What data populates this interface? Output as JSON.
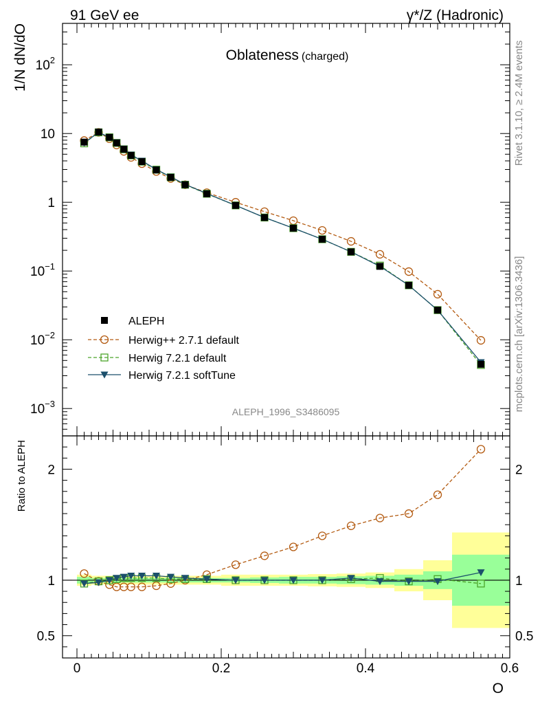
{
  "header": {
    "left": "91 GeV ee",
    "right": "γ*/Z (Hadronic)"
  },
  "side": {
    "rivet": "Rivet 3.1.10, ≥ 2.4M events",
    "mcplots": "mcplots.cern.ch [arXiv:1306.3436]"
  },
  "chart_data": {
    "type": "scatter",
    "title": "Oblateness",
    "title_suffix": "(charged)",
    "analysis_label": "ALEPH_1996_S3486095",
    "ylabel": "1/N dN/dO",
    "ratio_ylabel": "Ratio to ALEPH",
    "xlabel": "O",
    "xlim": [
      -0.02,
      0.6
    ],
    "ylim": [
      0.0004,
      400
    ],
    "yscale": "log",
    "ratio_ylim": [
      0.3,
      2.3
    ],
    "x_ticks": [
      {
        "value": 0,
        "label": "0"
      },
      {
        "value": 0.2,
        "label": "0.2"
      },
      {
        "value": 0.4,
        "label": "0.4"
      },
      {
        "value": 0.6,
        "label": "0.6"
      }
    ],
    "y_ticks": [
      {
        "value": 0.001,
        "base": "10",
        "exp": "−3"
      },
      {
        "value": 0.01,
        "base": "10",
        "exp": "−2"
      },
      {
        "value": 0.1,
        "base": "10",
        "exp": "−1"
      },
      {
        "value": 1,
        "base": "1",
        "exp": ""
      },
      {
        "value": 10,
        "base": "10",
        "exp": ""
      },
      {
        "value": 100,
        "base": "10",
        "exp": "2"
      }
    ],
    "ratio_ticks": [
      {
        "value": 0.5,
        "label": "0.5"
      },
      {
        "value": 1,
        "label": "1"
      },
      {
        "value": 2,
        "label": "2"
      }
    ],
    "legend_placement": "lower-left",
    "x": [
      0.01,
      0.03,
      0.045,
      0.055,
      0.065,
      0.075,
      0.09,
      0.11,
      0.13,
      0.15,
      0.18,
      0.22,
      0.26,
      0.3,
      0.34,
      0.38,
      0.42,
      0.46,
      0.5,
      0.56
    ],
    "x_edges": [
      0.0,
      0.02,
      0.04,
      0.05,
      0.06,
      0.07,
      0.08,
      0.1,
      0.12,
      0.14,
      0.16,
      0.2,
      0.24,
      0.28,
      0.32,
      0.36,
      0.4,
      0.44,
      0.48,
      0.52,
      0.6
    ],
    "band_inner": [
      0.03,
      0.02,
      0.02,
      0.02,
      0.02,
      0.02,
      0.02,
      0.02,
      0.02,
      0.02,
      0.02,
      0.02,
      0.025,
      0.03,
      0.03,
      0.035,
      0.04,
      0.05,
      0.08,
      0.23
    ],
    "band_outer": [
      0.05,
      0.04,
      0.04,
      0.04,
      0.04,
      0.04,
      0.04,
      0.04,
      0.04,
      0.04,
      0.04,
      0.05,
      0.05,
      0.05,
      0.055,
      0.06,
      0.07,
      0.1,
      0.18,
      0.43
    ],
    "series": [
      {
        "name": "ALEPH",
        "style": "data",
        "color": "#000000",
        "values": [
          7.5,
          10.5,
          8.8,
          7.3,
          5.9,
          4.8,
          3.9,
          2.95,
          2.3,
          1.8,
          1.33,
          0.9,
          0.6,
          0.42,
          0.29,
          0.19,
          0.117,
          0.062,
          0.027,
          0.0044
        ],
        "ratio": [
          1,
          1,
          1,
          1,
          1,
          1,
          1,
          1,
          1,
          1,
          1,
          1,
          1,
          1,
          1,
          1,
          1,
          1,
          1,
          1
        ]
      },
      {
        "name": "Herwig++ 2.7.1 default",
        "style": "circle-dashed",
        "color": "#b35a10",
        "values": [
          7.9,
          10.4,
          8.4,
          6.8,
          5.5,
          4.5,
          3.65,
          2.8,
          2.22,
          1.8,
          1.38,
          1.0,
          0.73,
          0.54,
          0.39,
          0.27,
          0.175,
          0.098,
          0.046,
          0.0098
        ],
        "ratio": [
          1.06,
          0.99,
          0.96,
          0.94,
          0.94,
          0.94,
          0.94,
          0.95,
          0.97,
          1.0,
          1.05,
          1.14,
          1.22,
          1.3,
          1.4,
          1.49,
          1.56,
          1.6,
          1.77,
          2.18
        ]
      },
      {
        "name": "Herwig 7.2.1 default",
        "style": "square-dashed",
        "color": "#4ca32a",
        "values": [
          7.2,
          10.4,
          8.8,
          7.3,
          5.9,
          4.8,
          3.9,
          2.98,
          2.31,
          1.8,
          1.33,
          0.9,
          0.6,
          0.42,
          0.29,
          0.19,
          0.12,
          0.062,
          0.027,
          0.0043
        ],
        "ratio": [
          0.97,
          0.99,
          1.0,
          1.01,
          1.02,
          1.02,
          1.02,
          1.02,
          1.01,
          1.01,
          1.01,
          1.0,
          1.0,
          1.0,
          1.0,
          1.01,
          1.02,
          0.99,
          1.01,
          0.97
        ]
      },
      {
        "name": "Herwig 7.2.1 softTune",
        "style": "triangle-solid",
        "color": "#1b4f6b",
        "values": [
          7.3,
          10.4,
          8.8,
          7.4,
          6.0,
          4.9,
          4.0,
          3.0,
          2.34,
          1.82,
          1.34,
          0.9,
          0.6,
          0.42,
          0.29,
          0.19,
          0.117,
          0.062,
          0.027,
          0.0047
        ],
        "ratio": [
          0.97,
          0.98,
          1.0,
          1.02,
          1.03,
          1.04,
          1.04,
          1.04,
          1.03,
          1.02,
          1.01,
          1.0,
          1.0,
          1.0,
          1.0,
          1.02,
          0.99,
          0.99,
          0.99,
          1.07
        ]
      }
    ]
  }
}
